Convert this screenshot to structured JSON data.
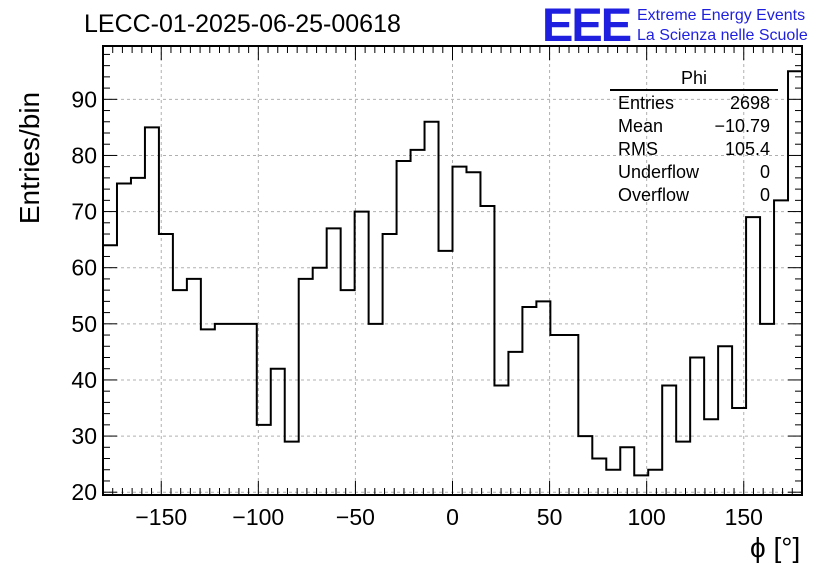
{
  "chart_data": {
    "type": "histogram",
    "title": "LECC-01-2025-06-25-00618",
    "xlabel": "ϕ [°]",
    "ylabel": "Entries/bin",
    "xlim": [
      -180,
      180
    ],
    "ylim": [
      19.5,
      99.5
    ],
    "bin_width": 7.2,
    "xticks": [
      -150,
      -100,
      -50,
      0,
      50,
      100,
      150
    ],
    "xtick_labels": [
      "−150",
      "−100",
      "−50",
      "0",
      "50",
      "100",
      "150"
    ],
    "yticks": [
      20,
      30,
      40,
      50,
      60,
      70,
      80,
      90
    ],
    "ytick_labels": [
      "20",
      "30",
      "40",
      "50",
      "60",
      "70",
      "80",
      "90"
    ],
    "grid": true,
    "values": [
      64,
      75,
      76,
      85,
      66,
      56,
      58,
      49,
      50,
      50,
      50,
      32,
      42,
      29,
      58,
      60,
      67,
      56,
      70,
      50,
      66,
      79,
      81,
      86,
      63,
      78,
      77,
      71,
      39,
      45,
      53,
      54,
      48,
      48,
      30,
      26,
      24,
      28,
      23,
      24,
      39,
      29,
      44,
      33,
      46,
      35,
      69,
      50,
      72,
      95
    ],
    "stats": {
      "name": "Phi",
      "rows": [
        {
          "label": "Entries",
          "value": "2698"
        },
        {
          "label": "Mean",
          "value": "−10.79"
        },
        {
          "label": "RMS",
          "value": "105.4"
        },
        {
          "label": "Underflow",
          "value": "0"
        },
        {
          "label": "Overflow",
          "value": "0"
        }
      ]
    }
  },
  "logo": {
    "mark": "EEE",
    "line1": "Extreme Energy Events",
    "line2": "La Scienza nelle Scuole"
  }
}
